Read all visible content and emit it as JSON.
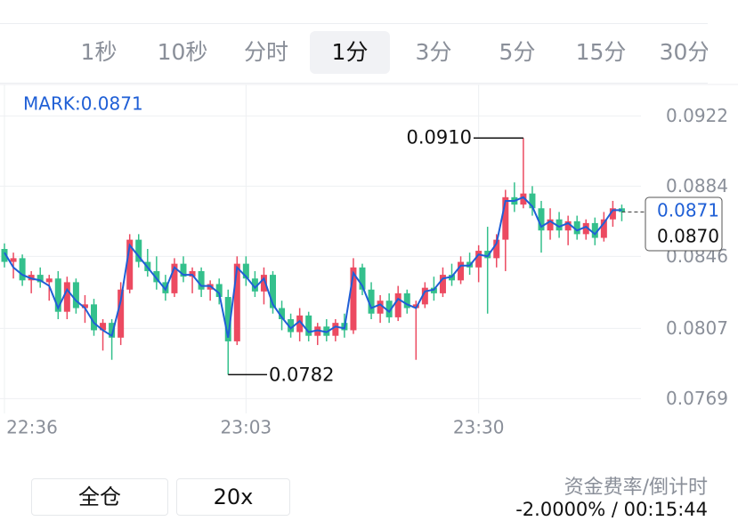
{
  "tabs": [
    "1秒",
    "10秒",
    "分时",
    "1分",
    "3分",
    "5分",
    "15分",
    "30分"
  ],
  "active_tab": 3,
  "chart_data": {
    "type": "candlestick",
    "mark_label": "MARK:0.0871",
    "ylim": [
      0.0761,
      0.0939
    ],
    "yticks": [
      0.0922,
      0.0884,
      0.0846,
      0.0807,
      0.0769
    ],
    "grid": true,
    "up_color": "#ec4a61",
    "down_color": "#34c08c",
    "line_color": "#1f5fd6",
    "x": [
      "22:36",
      null,
      null,
      null,
      null,
      null,
      null,
      null,
      null,
      null,
      null,
      null,
      null,
      null,
      null,
      null,
      null,
      null,
      null,
      null,
      null,
      null,
      null,
      null,
      null,
      null,
      null,
      "23:03",
      null,
      null,
      null,
      null,
      null,
      null,
      null,
      null,
      null,
      null,
      null,
      null,
      null,
      null,
      null,
      null,
      null,
      null,
      null,
      null,
      null,
      null,
      null,
      null,
      null,
      "23:30",
      null,
      null,
      null,
      null,
      null,
      null,
      null,
      null,
      null,
      null,
      null,
      null,
      null,
      null,
      null
    ],
    "candles": [
      [
        0.085,
        0.0853,
        0.084,
        0.0843
      ],
      [
        0.0843,
        0.0848,
        0.0834,
        0.0845
      ],
      [
        0.0845,
        0.0847,
        0.083,
        0.0833
      ],
      [
        0.0833,
        0.0838,
        0.0826,
        0.0836
      ],
      [
        0.0836,
        0.084,
        0.0829,
        0.0832
      ],
      [
        0.0832,
        0.0836,
        0.0822,
        0.0834
      ],
      [
        0.0834,
        0.0838,
        0.0812,
        0.0816
      ],
      [
        0.0816,
        0.0835,
        0.0812,
        0.0832
      ],
      [
        0.0832,
        0.0834,
        0.0815,
        0.0818
      ],
      [
        0.0818,
        0.0825,
        0.081,
        0.082
      ],
      [
        0.082,
        0.0823,
        0.0803,
        0.0806
      ],
      [
        0.0806,
        0.0812,
        0.0795,
        0.081
      ],
      [
        0.081,
        0.0812,
        0.079,
        0.0802
      ],
      [
        0.0802,
        0.0832,
        0.0798,
        0.0828
      ],
      [
        0.0828,
        0.0858,
        0.0826,
        0.0855
      ],
      [
        0.0855,
        0.0858,
        0.084,
        0.0843
      ],
      [
        0.0843,
        0.085,
        0.0835,
        0.0838
      ],
      [
        0.0838,
        0.0846,
        0.0828,
        0.0832
      ],
      [
        0.0832,
        0.0836,
        0.0822,
        0.0826
      ],
      [
        0.0826,
        0.0845,
        0.0824,
        0.0842
      ],
      [
        0.0842,
        0.0846,
        0.0832,
        0.0835
      ],
      [
        0.0835,
        0.084,
        0.0826,
        0.0838
      ],
      [
        0.0838,
        0.084,
        0.0824,
        0.0828
      ],
      [
        0.0828,
        0.0833,
        0.0822,
        0.0831
      ],
      [
        0.0831,
        0.0834,
        0.082,
        0.0824
      ],
      [
        0.0824,
        0.0828,
        0.0782,
        0.08
      ],
      [
        0.08,
        0.0846,
        0.0798,
        0.0842
      ],
      [
        0.0842,
        0.0846,
        0.083,
        0.0834
      ],
      [
        0.0834,
        0.0838,
        0.0824,
        0.0827
      ],
      [
        0.0827,
        0.084,
        0.082,
        0.0836
      ],
      [
        0.0836,
        0.0838,
        0.0815,
        0.0818
      ],
      [
        0.0818,
        0.0822,
        0.0806,
        0.0812
      ],
      [
        0.0812,
        0.0815,
        0.0802,
        0.0805
      ],
      [
        0.0805,
        0.0818,
        0.08,
        0.0814
      ],
      [
        0.0814,
        0.0816,
        0.08,
        0.0803
      ],
      [
        0.0803,
        0.081,
        0.0798,
        0.0808
      ],
      [
        0.0808,
        0.0812,
        0.08,
        0.0803
      ],
      [
        0.0803,
        0.0812,
        0.08,
        0.081
      ],
      [
        0.081,
        0.0815,
        0.0802,
        0.0806
      ],
      [
        0.0806,
        0.0845,
        0.0804,
        0.084
      ],
      [
        0.084,
        0.0842,
        0.0825,
        0.0828
      ],
      [
        0.0828,
        0.0832,
        0.0812,
        0.0815
      ],
      [
        0.0815,
        0.0825,
        0.081,
        0.0822
      ],
      [
        0.0822,
        0.0826,
        0.081,
        0.0813
      ],
      [
        0.0813,
        0.083,
        0.0811,
        0.0826
      ],
      [
        0.0826,
        0.0828,
        0.0815,
        0.0818
      ],
      [
        0.0818,
        0.0822,
        0.079,
        0.082
      ],
      [
        0.082,
        0.0832,
        0.0818,
        0.0829
      ],
      [
        0.0829,
        0.0835,
        0.0822,
        0.0826
      ],
      [
        0.0826,
        0.084,
        0.0824,
        0.0836
      ],
      [
        0.0836,
        0.0842,
        0.083,
        0.0833
      ],
      [
        0.0833,
        0.0846,
        0.0831,
        0.0843
      ],
      [
        0.0843,
        0.0848,
        0.0836,
        0.084
      ],
      [
        0.084,
        0.0852,
        0.0832,
        0.0849
      ],
      [
        0.0849,
        0.0862,
        0.0815,
        0.0845
      ],
      [
        0.0845,
        0.0858,
        0.084,
        0.0855
      ],
      [
        0.0855,
        0.0882,
        0.0838,
        0.0878
      ],
      [
        0.0878,
        0.0886,
        0.087,
        0.0874
      ],
      [
        0.0874,
        0.091,
        0.0872,
        0.088
      ],
      [
        0.088,
        0.0884,
        0.0868,
        0.0872
      ],
      [
        0.0872,
        0.0876,
        0.0848,
        0.086
      ],
      [
        0.086,
        0.0872,
        0.0855,
        0.0866
      ],
      [
        0.0866,
        0.087,
        0.0856,
        0.086
      ],
      [
        0.086,
        0.0868,
        0.0852,
        0.0865
      ],
      [
        0.0865,
        0.0868,
        0.0855,
        0.0858
      ],
      [
        0.0858,
        0.0866,
        0.0855,
        0.0864
      ],
      [
        0.0864,
        0.0867,
        0.0852,
        0.0856
      ],
      [
        0.0856,
        0.087,
        0.0854,
        0.0866
      ],
      [
        0.0866,
        0.0876,
        0.0862,
        0.0872
      ],
      [
        0.0872,
        0.0874,
        0.0865,
        0.087
      ]
    ],
    "mark_line": [
      0.0848,
      0.084,
      0.0836,
      0.0834,
      0.0833,
      0.083,
      0.0818,
      0.0828,
      0.0822,
      0.0818,
      0.081,
      0.0806,
      0.0803,
      0.0822,
      0.0852,
      0.0846,
      0.084,
      0.0834,
      0.0828,
      0.084,
      0.0836,
      0.0836,
      0.083,
      0.083,
      0.0826,
      0.0802,
      0.084,
      0.0835,
      0.0829,
      0.0834,
      0.082,
      0.0813,
      0.0807,
      0.0811,
      0.0805,
      0.0806,
      0.0805,
      0.0808,
      0.0807,
      0.0837,
      0.083,
      0.0818,
      0.082,
      0.0816,
      0.0823,
      0.082,
      0.0818,
      0.0827,
      0.0828,
      0.0834,
      0.0835,
      0.0841,
      0.0841,
      0.0847,
      0.0846,
      0.0853,
      0.0876,
      0.0876,
      0.0878,
      0.0873,
      0.0862,
      0.0865,
      0.0862,
      0.0864,
      0.086,
      0.0862,
      0.0858,
      0.0864,
      0.0871,
      0.0871
    ],
    "max_annotation": {
      "value": 0.091,
      "label": "0.0910"
    },
    "min_annotation": 0.0782,
    "mark_price": 0.0871,
    "last_price": {
      "value": 0.087,
      "label": "0.0870"
    }
  },
  "buttons": [
    "全仓",
    "20x"
  ],
  "funding": {
    "label": "资金费率/倒计时",
    "value": "-2.0000% / 00:15:44"
  }
}
